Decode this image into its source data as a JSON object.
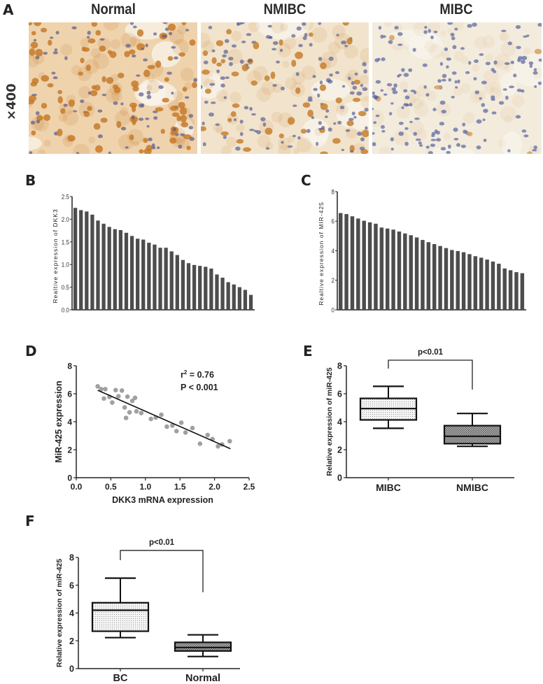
{
  "figure": {
    "panel_labels": [
      "A",
      "B",
      "C",
      "D",
      "E",
      "F"
    ],
    "panel_a": {
      "columns": [
        "Normal",
        "NMIBC",
        "MIBC"
      ],
      "magnification_label": "×400",
      "images": [
        {
          "name": "Normal",
          "background": "#efd3ad",
          "brown_cell": "#c57a2a",
          "blue_cell": "#5a5a8c",
          "brown_density": 0.55
        },
        {
          "name": "NMIBC",
          "background": "#f2e4cc",
          "brown_cell": "#c7802f",
          "blue_cell": "#5a5f95",
          "brown_density": 0.3
        },
        {
          "name": "MIBC",
          "background": "#f3ebdc",
          "brown_cell": "#d5a25f",
          "blue_cell": "#5664a0",
          "brown_density": 0.03
        }
      ]
    }
  },
  "chart_data": [
    {
      "panel": "B",
      "type": "bar",
      "title": "",
      "xlabel": "",
      "ylabel": "Realtive expression of DKK3",
      "ylim": [
        0,
        2.5
      ],
      "yticks": [
        "0.0",
        "0.5",
        "1.0",
        "1.5",
        "2.0",
        "2.5"
      ],
      "bar_color": "#4d4d4d",
      "values": [
        2.25,
        2.2,
        2.17,
        2.1,
        1.97,
        1.9,
        1.83,
        1.78,
        1.76,
        1.7,
        1.63,
        1.57,
        1.55,
        1.48,
        1.44,
        1.37,
        1.37,
        1.29,
        1.21,
        1.1,
        1.03,
        0.99,
        0.97,
        0.95,
        0.91,
        0.78,
        0.71,
        0.61,
        0.56,
        0.5,
        0.44,
        0.33
      ]
    },
    {
      "panel": "C",
      "type": "bar",
      "title": "",
      "xlabel": "",
      "ylabel": "Realtive expression of MIR-425",
      "ylim": [
        0,
        8
      ],
      "yticks": [
        "0",
        "2",
        "4",
        "6",
        "8"
      ],
      "bar_color": "#4d4d4d",
      "values": [
        6.55,
        6.48,
        6.33,
        6.18,
        6.03,
        5.92,
        5.83,
        5.57,
        5.5,
        5.43,
        5.3,
        5.17,
        5.05,
        4.9,
        4.73,
        4.58,
        4.45,
        4.32,
        4.18,
        4.05,
        3.98,
        3.9,
        3.77,
        3.63,
        3.53,
        3.4,
        3.27,
        3.12,
        2.8,
        2.68,
        2.55,
        2.48
      ]
    },
    {
      "panel": "D",
      "type": "scatter",
      "title": "",
      "xlabel": "DKK3 mRNA expression",
      "ylabel": "MiR-425 expression",
      "xlim": [
        0,
        2.5
      ],
      "ylim": [
        0,
        8
      ],
      "xticks": [
        "0.0",
        "0.5",
        "1.0",
        "1.5",
        "2.0",
        "2.5"
      ],
      "yticks": [
        "0",
        "2",
        "4",
        "6",
        "8"
      ],
      "annotation": {
        "r2_label": "r",
        "r2_sup": "2",
        "r2_value": " = 0.76",
        "p_value": "P < 0.001"
      },
      "point_color": "#a0a0a0",
      "points": [
        [
          0.31,
          6.53
        ],
        [
          0.36,
          6.33
        ],
        [
          0.42,
          6.33
        ],
        [
          0.4,
          5.66
        ],
        [
          0.48,
          5.77
        ],
        [
          0.52,
          5.37
        ],
        [
          0.57,
          6.26
        ],
        [
          0.61,
          5.82
        ],
        [
          0.66,
          6.23
        ],
        [
          0.7,
          5.02
        ],
        [
          0.72,
          4.27
        ],
        [
          0.74,
          5.79
        ],
        [
          0.77,
          4.67
        ],
        [
          0.81,
          5.49
        ],
        [
          0.85,
          5.71
        ],
        [
          0.87,
          4.74
        ],
        [
          0.94,
          4.62
        ],
        [
          1.08,
          4.2
        ],
        [
          1.15,
          4.3
        ],
        [
          1.23,
          4.5
        ],
        [
          1.31,
          3.65
        ],
        [
          1.39,
          3.73
        ],
        [
          1.45,
          3.33
        ],
        [
          1.52,
          3.93
        ],
        [
          1.58,
          3.23
        ],
        [
          1.68,
          3.55
        ],
        [
          1.79,
          2.43
        ],
        [
          1.9,
          3.05
        ],
        [
          1.97,
          2.76
        ],
        [
          2.05,
          2.24
        ],
        [
          2.11,
          2.38
        ],
        [
          2.22,
          2.61
        ]
      ],
      "fit_line": [
        [
          0.31,
          6.25
        ],
        [
          2.23,
          2.07
        ]
      ]
    },
    {
      "panel": "E",
      "type": "box",
      "title": "",
      "xlabel": "",
      "ylabel": "Relative expression of miR-425",
      "ylim": [
        0,
        8
      ],
      "yticks": [
        "0",
        "2",
        "4",
        "6",
        "8"
      ],
      "categories": [
        "MIBC",
        "NMIBC"
      ],
      "boxes": [
        {
          "label": "MIBC",
          "min": 3.53,
          "q1": 4.13,
          "median": 4.94,
          "q3": 5.67,
          "max": 6.53,
          "fill": "light-dotted"
        },
        {
          "label": "NMIBC",
          "min": 2.24,
          "q1": 2.43,
          "median": 2.96,
          "q3": 3.72,
          "max": 4.59,
          "fill": "dark-dotted"
        }
      ],
      "significance": {
        "label": "p<0.01",
        "bracket_y": 8.4,
        "left_drop_to": 7.8,
        "right_drop_to": 6.3
      }
    },
    {
      "panel": "F",
      "type": "box",
      "title": "",
      "xlabel": "",
      "ylabel": "Relative expression of miR-425",
      "ylim": [
        0,
        8
      ],
      "yticks": [
        "0",
        "2",
        "4",
        "6",
        "8"
      ],
      "categories": [
        "BC",
        "Normal"
      ],
      "boxes": [
        {
          "label": "BC",
          "min": 2.23,
          "q1": 2.69,
          "median": 4.2,
          "q3": 4.74,
          "max": 6.51,
          "fill": "light-dotted"
        },
        {
          "label": "Normal",
          "min": 0.87,
          "q1": 1.27,
          "median": 1.52,
          "q3": 1.89,
          "max": 2.43,
          "fill": "dark-dotted"
        }
      ],
      "significance": {
        "label": "p<0.01",
        "bracket_y": 8.5,
        "left_drop_to": 7.8,
        "right_drop_to": 5.5
      }
    }
  ]
}
